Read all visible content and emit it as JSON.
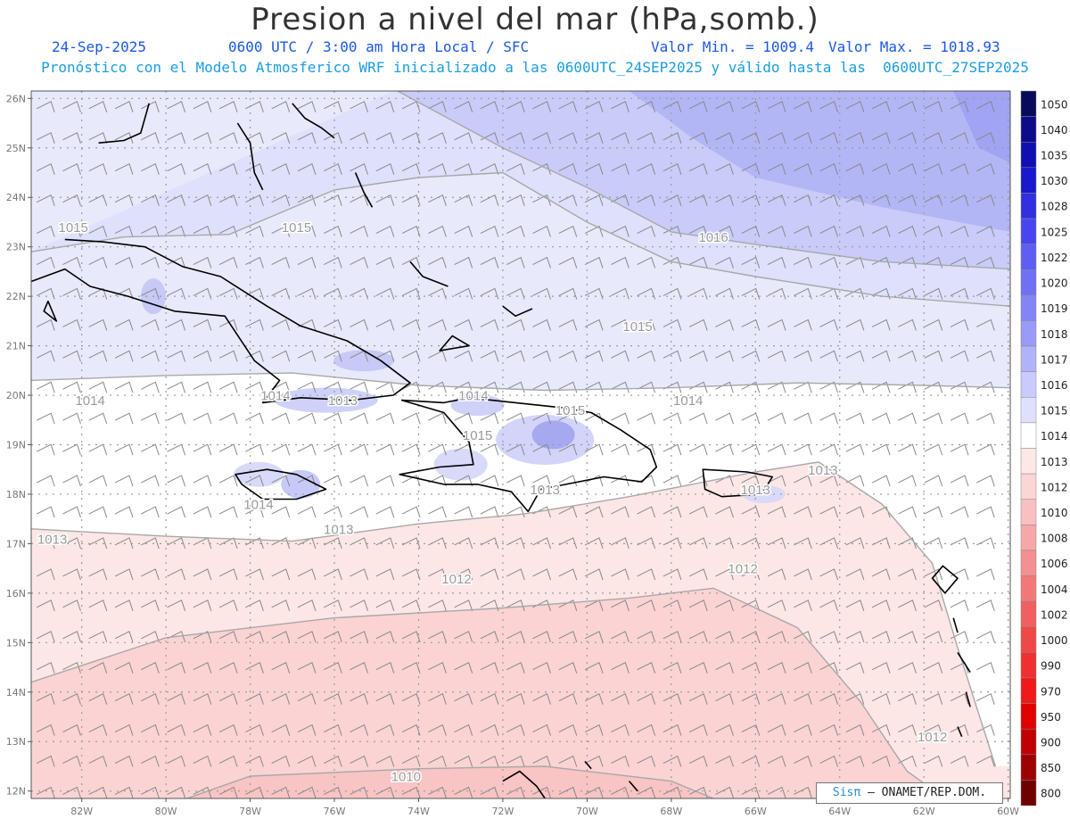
{
  "header": {
    "title": "Presion a nivel del mar (hPa,somb.)",
    "date": "24-Sep-2025",
    "time": "0600 UTC / 3:00 am Hora Local / SFC",
    "min": "Valor Min. = 1009.4",
    "max": "Valor Max. = 1018.93",
    "model_line": "Pronóstico con el Modelo Atmosferico WRF inicializado a las 0600UTC_24SEP2025 y válido hasta las  0600UTC_27SEP2025"
  },
  "axes": {
    "lat_labels": [
      "26N",
      "25N",
      "24N",
      "23N",
      "22N",
      "21N",
      "20N",
      "19N",
      "18N",
      "17N",
      "16N",
      "15N",
      "14N",
      "13N",
      "12N"
    ],
    "lon_labels": [
      "82W",
      "80W",
      "78W",
      "76W",
      "74W",
      "72W",
      "70W",
      "68W",
      "66W",
      "64W",
      "62W",
      "60W"
    ]
  },
  "isobars": [
    {
      "label": "1015",
      "lon": -82.2,
      "lat": 23.3
    },
    {
      "label": "1015",
      "lon": -76.9,
      "lat": 23.3
    },
    {
      "label": "1016",
      "lon": -67.0,
      "lat": 23.1
    },
    {
      "label": "1015",
      "lon": -68.8,
      "lat": 21.3
    },
    {
      "label": "1014",
      "lon": -81.8,
      "lat": 19.8
    },
    {
      "label": "1014",
      "lon": -77.4,
      "lat": 19.9
    },
    {
      "label": "1013",
      "lon": -75.8,
      "lat": 19.8
    },
    {
      "label": "1014",
      "lon": -72.7,
      "lat": 19.9
    },
    {
      "label": "1015",
      "lon": -70.4,
      "lat": 19.6
    },
    {
      "label": "1014",
      "lon": -67.6,
      "lat": 19.8
    },
    {
      "label": "1015",
      "lon": -72.6,
      "lat": 19.1
    },
    {
      "label": "1013",
      "lon": -71.0,
      "lat": 18.0
    },
    {
      "label": "1013",
      "lon": -66.0,
      "lat": 18.0
    },
    {
      "label": "1013",
      "lon": -64.4,
      "lat": 18.4
    },
    {
      "label": "1014",
      "lon": -77.8,
      "lat": 17.7
    },
    {
      "label": "1013",
      "lon": -75.9,
      "lat": 17.2
    },
    {
      "label": "1013",
      "lon": -82.7,
      "lat": 17.0
    },
    {
      "label": "1012",
      "lon": -73.1,
      "lat": 16.2
    },
    {
      "label": "1012",
      "lon": -66.3,
      "lat": 16.4
    },
    {
      "label": "1012",
      "lon": -61.8,
      "lat": 13.0
    },
    {
      "label": "1010",
      "lon": -74.3,
      "lat": 12.2
    }
  ],
  "colorbar": {
    "labels": [
      "1050",
      "1040",
      "1035",
      "1030",
      "1028",
      "1025",
      "1022",
      "1020",
      "1019",
      "1018",
      "1017",
      "1016",
      "1015",
      "1014",
      "1013",
      "1012",
      "1010",
      "1008",
      "1006",
      "1004",
      "1002",
      "1000",
      "990",
      "970",
      "950",
      "900",
      "850",
      "800"
    ],
    "colors": [
      "#0a0a5a",
      "#0c0c8a",
      "#1010b0",
      "#1818cc",
      "#3030e0",
      "#4646f0",
      "#5e5ef2",
      "#7070f4",
      "#8484f6",
      "#9a9af8",
      "#b2b2fa",
      "#cacafc",
      "#e0e0fd",
      "#ffffff",
      "#fde8e8",
      "#fbd6d6",
      "#f8c0c0",
      "#f6a8a8",
      "#f49090",
      "#f27878",
      "#f06060",
      "#f04848",
      "#f03030",
      "#f01818",
      "#e00000",
      "#c00000",
      "#9c0000",
      "#700000"
    ]
  },
  "credit": {
    "logo": "Sisπ",
    "text": " – ONAMET/REP.DOM."
  },
  "style": {
    "land_outline": "#000000",
    "grid": "#999999",
    "contour": "#aaaaaa",
    "wind_barb": "#777777"
  }
}
